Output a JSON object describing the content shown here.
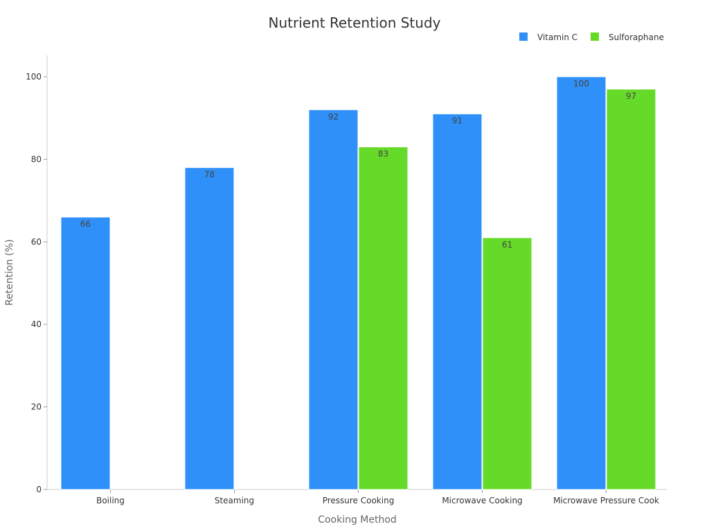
{
  "chart_data": {
    "type": "bar",
    "title": "Nutrient Retention Study",
    "xlabel": "Cooking Method",
    "ylabel": "Retention (%)",
    "ylim": [
      0,
      105
    ],
    "yticks": [
      0,
      20,
      40,
      60,
      80,
      100
    ],
    "categories": [
      "Boiling",
      "Steaming",
      "Pressure Cooking",
      "Microwave Cooking",
      "Microwave Pressure Cook"
    ],
    "series": [
      {
        "name": "Vitamin C",
        "color": "#2e90f8",
        "values": [
          66,
          78,
          92,
          91,
          100
        ]
      },
      {
        "name": "Sulforaphane",
        "color": "#66da28",
        "values": [
          null,
          null,
          83,
          61,
          97
        ]
      }
    ],
    "legend_position": "top-right",
    "grid": false
  }
}
